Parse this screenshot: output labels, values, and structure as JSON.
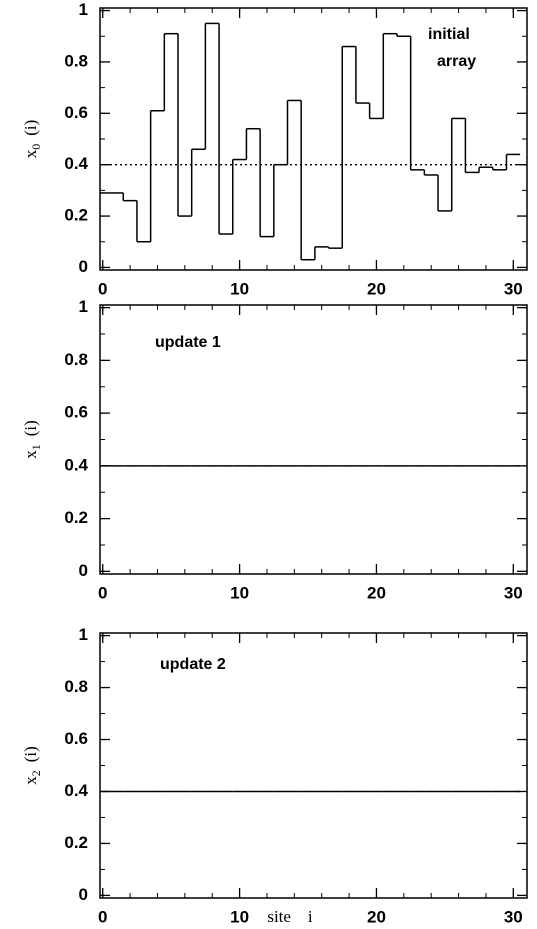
{
  "chart_data": [
    {
      "type": "step",
      "x": [
        0,
        1,
        2,
        3,
        4,
        5,
        6,
        7,
        8,
        9,
        10,
        11,
        12,
        13,
        14,
        15,
        16,
        17,
        18,
        19,
        20,
        21,
        22,
        23,
        24,
        25,
        26,
        27,
        28,
        29,
        30
      ],
      "values": [
        0.29,
        0.29,
        0.26,
        0.1,
        0.61,
        0.91,
        0.2,
        0.46,
        0.95,
        0.13,
        0.42,
        0.54,
        0.12,
        0.4,
        0.65,
        0.03,
        0.08,
        0.075,
        0.86,
        0.64,
        0.58,
        0.91,
        0.9,
        0.38,
        0.36,
        0.22,
        0.58,
        0.37,
        0.39,
        0.38,
        0.44
      ],
      "color": "#000000",
      "reference_line": {
        "value": 0.4,
        "style": "dotted"
      },
      "ylabel": {
        "symbol": "x",
        "subscript": "0",
        "argument": "(i)"
      },
      "annotation_lines": [
        "initial",
        "array"
      ],
      "xlim": [
        -0.2,
        31
      ],
      "xticks": [
        0,
        10,
        20,
        30
      ],
      "x_minor_step": 2,
      "ylim": [
        -0.01,
        1.01
      ],
      "yticks": [
        0,
        0.2,
        0.4,
        0.6,
        0.8,
        1
      ],
      "y_minor_step": 0.1
    },
    {
      "type": "step",
      "x": [
        0,
        1,
        2,
        3,
        4,
        5,
        6,
        7,
        8,
        9,
        10,
        11,
        12,
        13,
        14,
        15,
        16,
        17,
        18,
        19,
        20,
        21,
        22,
        23,
        24,
        25,
        26,
        27,
        28,
        29,
        30
      ],
      "values": [
        0.4,
        0.4,
        0.4,
        0.4,
        0.4,
        0.4,
        0.4,
        0.4,
        0.4,
        0.4,
        0.4,
        0.4,
        0.4,
        0.4,
        0.4,
        0.4,
        0.4,
        0.4,
        0.4,
        0.4,
        0.4,
        0.4,
        0.4,
        0.4,
        0.4,
        0.4,
        0.4,
        0.4,
        0.4,
        0.4,
        0.4
      ],
      "color": "#000000",
      "ylabel": {
        "symbol": "x",
        "subscript": "1",
        "argument": "(i)"
      },
      "annotation_lines": [
        "update 1"
      ],
      "xlim": [
        -0.2,
        31
      ],
      "xticks": [
        0,
        10,
        20,
        30
      ],
      "x_minor_step": 2,
      "ylim": [
        -0.01,
        1.01
      ],
      "yticks": [
        0,
        0.2,
        0.4,
        0.6,
        0.8,
        1
      ],
      "y_minor_step": 0.1
    },
    {
      "type": "step",
      "x": [
        0,
        1,
        2,
        3,
        4,
        5,
        6,
        7,
        8,
        9,
        10,
        11,
        12,
        13,
        14,
        15,
        16,
        17,
        18,
        19,
        20,
        21,
        22,
        23,
        24,
        25,
        26,
        27,
        28,
        29,
        30
      ],
      "values": [
        0.4,
        0.4,
        0.4,
        0.4,
        0.4,
        0.4,
        0.4,
        0.4,
        0.4,
        0.4,
        0.4,
        0.4,
        0.4,
        0.4,
        0.4,
        0.4,
        0.4,
        0.4,
        0.4,
        0.4,
        0.4,
        0.4,
        0.4,
        0.4,
        0.4,
        0.4,
        0.4,
        0.4,
        0.4,
        0.4,
        0.4
      ],
      "color": "#000000",
      "ylabel": {
        "symbol": "x",
        "subscript": "2",
        "argument": "(i)"
      },
      "annotation_lines": [
        "update 2"
      ],
      "xlabel": "site    i",
      "xlim": [
        -0.2,
        31
      ],
      "xticks": [
        0,
        10,
        20,
        30
      ],
      "x_minor_step": 2,
      "ylim": [
        -0.01,
        1.01
      ],
      "yticks": [
        0,
        0.2,
        0.4,
        0.6,
        0.8,
        1
      ],
      "y_minor_step": 0.1
    }
  ]
}
